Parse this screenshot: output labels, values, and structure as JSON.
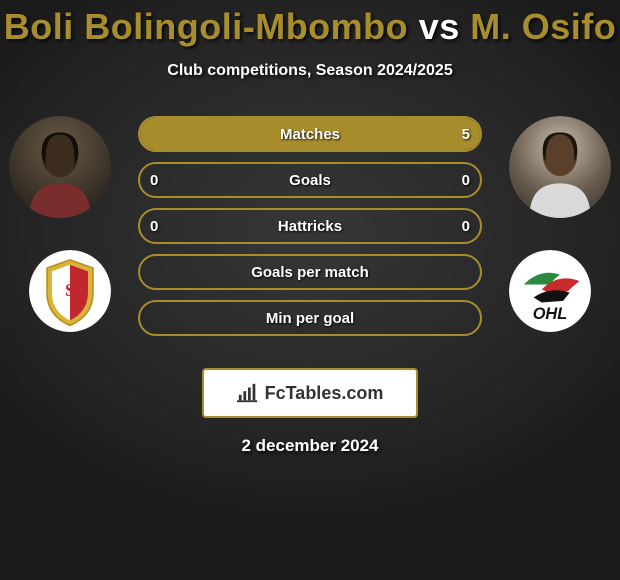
{
  "accent_color": "#a88d2d",
  "text_color": "#ffffff",
  "title": {
    "player1": "Boli Bolingoli-Mbombo",
    "vs": "vs",
    "player2": "M. Osifo",
    "color_player": "#a88d2d",
    "color_vs": "#ffffff",
    "fontsize": 36
  },
  "subtitle": {
    "text": "Club competitions, Season 2024/2025",
    "fontsize": 16
  },
  "portraits": {
    "left": {
      "bg": "radial-gradient(circle at 50% 30%, #6b5a45 0%, #3a3228 60%, #1d1a14 100%)"
    },
    "right": {
      "bg": "radial-gradient(circle at 50% 30%, #c8bca8 0%, #6a5d4f 55%, #2e2a24 100%)"
    }
  },
  "crests": {
    "left": {
      "type": "standard"
    },
    "right": {
      "type": "ohl"
    }
  },
  "stats": {
    "label_fontsize": 15,
    "border_color": "#a88d2d",
    "fill_left_color": "#5f511e",
    "fill_right_color": "#a88d2d",
    "rows": [
      {
        "label": "Matches",
        "left_val": "",
        "right_val": "5",
        "left_pct": 0,
        "right_pct": 100
      },
      {
        "label": "Goals",
        "left_val": "0",
        "right_val": "0",
        "left_pct": 0,
        "right_pct": 0
      },
      {
        "label": "Hattricks",
        "left_val": "0",
        "right_val": "0",
        "left_pct": 0,
        "right_pct": 0
      },
      {
        "label": "Goals per match",
        "left_val": "",
        "right_val": "",
        "left_pct": 0,
        "right_pct": 0
      },
      {
        "label": "Min per goal",
        "left_val": "",
        "right_val": "",
        "left_pct": 0,
        "right_pct": 0
      }
    ]
  },
  "logo": {
    "text": "FcTables.com",
    "border_color": "#a88d2d"
  },
  "date": "2 december 2024"
}
